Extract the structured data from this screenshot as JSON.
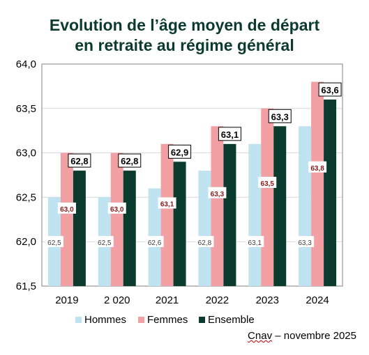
{
  "chart_data": {
    "type": "bar",
    "title_line1": "Evolution de l’âge moyen de départ",
    "title_line2": "en retraite au régime général",
    "categories": [
      "2019",
      "2 020",
      "2021",
      "2022",
      "2023",
      "2024"
    ],
    "series": [
      {
        "name": "Hommes",
        "values": [
          62.5,
          62.5,
          62.6,
          62.8,
          63.1,
          63.3
        ],
        "labels": [
          "62,5",
          "62,5",
          "62,6",
          "62,8",
          "63,1",
          "63,3"
        ],
        "color": "#bfe3f0"
      },
      {
        "name": "Femmes",
        "values": [
          63.0,
          63.0,
          63.1,
          63.3,
          63.5,
          63.8
        ],
        "labels": [
          "63,0",
          "63,0",
          "63,1",
          "63,3",
          "63,5",
          "63,8"
        ],
        "color": "#f2a0a4"
      },
      {
        "name": "Ensemble",
        "values": [
          62.8,
          62.8,
          62.9,
          63.1,
          63.3,
          63.6
        ],
        "labels": [
          "62,8",
          "62,8",
          "62,9",
          "63,1",
          "63,3",
          "63,6"
        ],
        "color": "#0b3b2e"
      }
    ],
    "ylim": [
      61.5,
      64.0
    ],
    "yticks": [
      61.5,
      62.0,
      62.5,
      63.0,
      63.5,
      64.0
    ],
    "ytick_labels": [
      "61,5",
      "62,0",
      "62,5",
      "63,0",
      "63,5",
      "64,0"
    ],
    "grid": true,
    "legend": "bottom"
  },
  "source": {
    "brand": "Cnav",
    "rest": " – novembre 2025"
  }
}
